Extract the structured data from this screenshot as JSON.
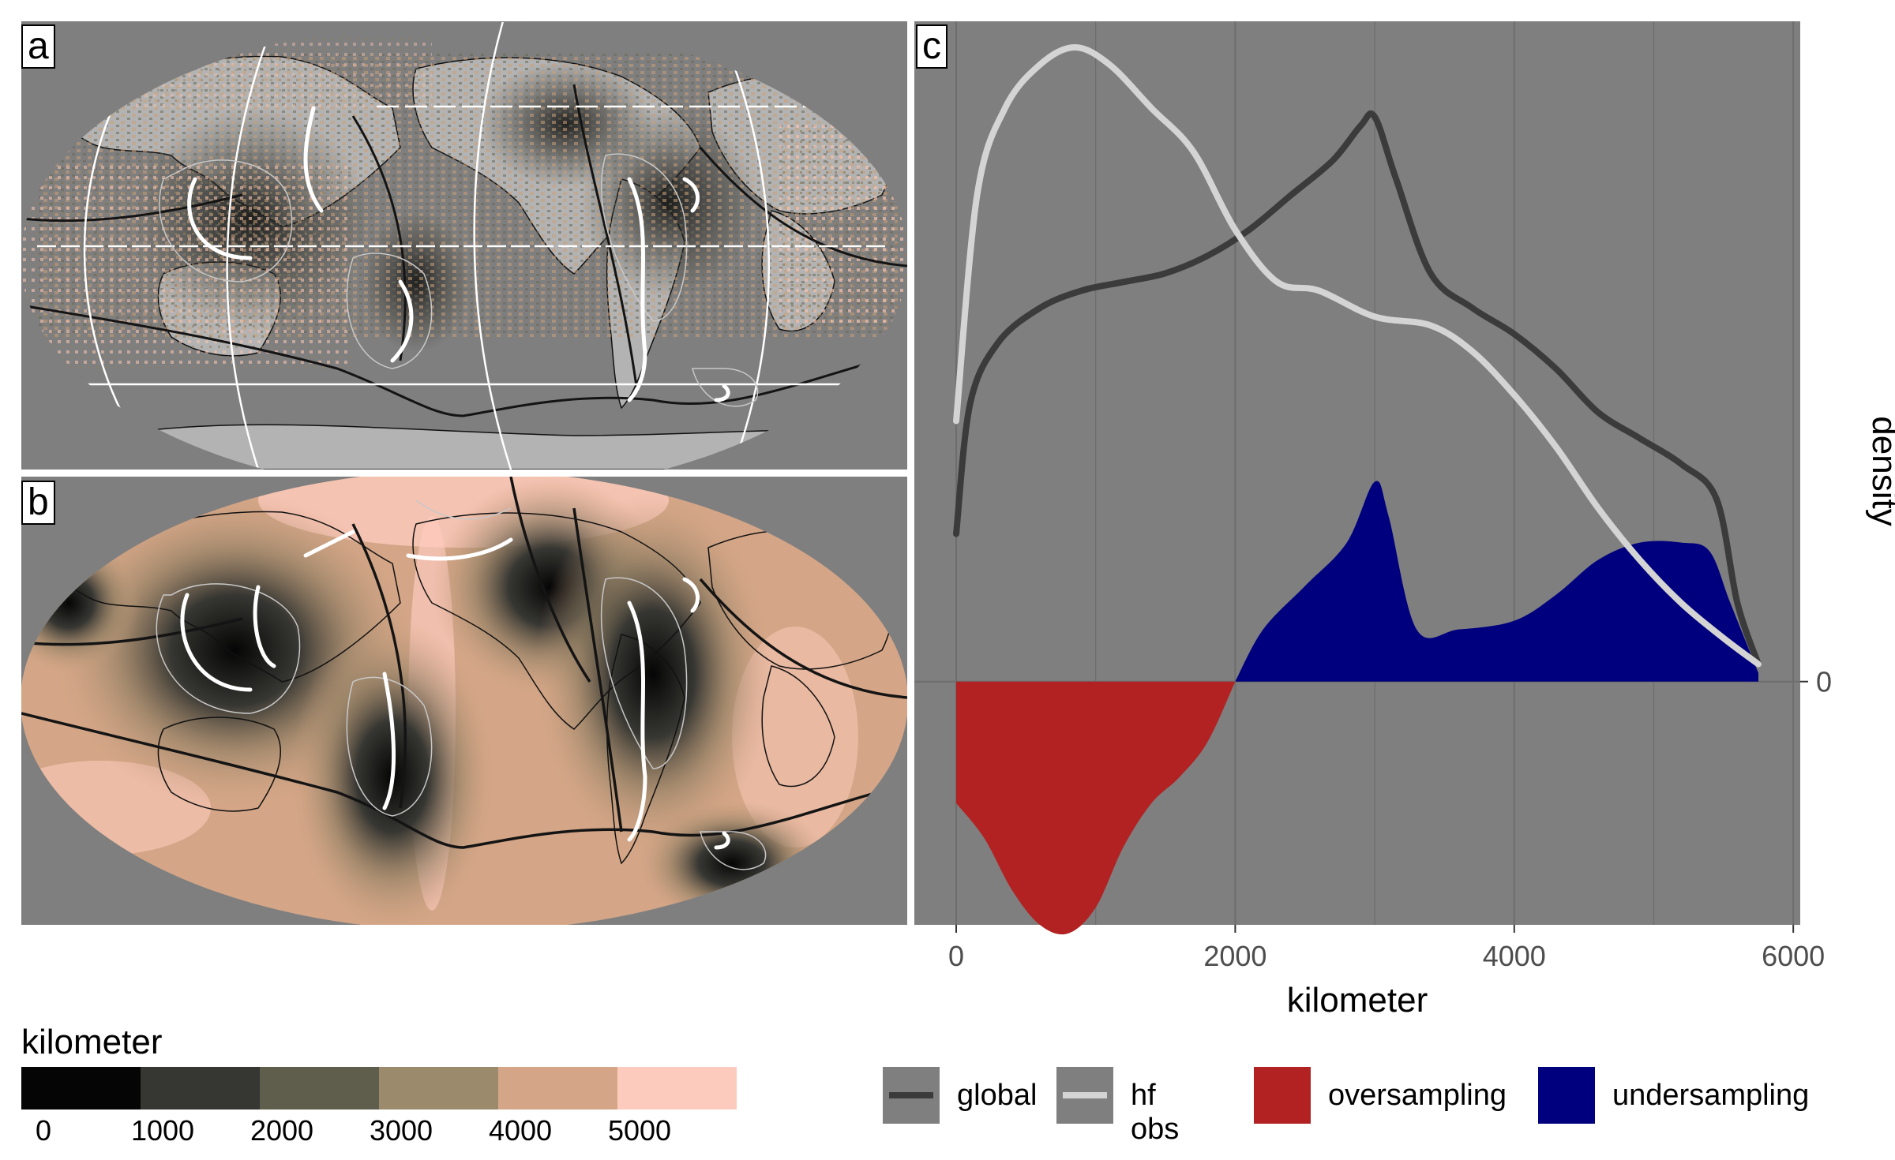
{
  "panels": {
    "a": {
      "tag": "a"
    },
    "b": {
      "tag": "b"
    },
    "c": {
      "tag": "c"
    }
  },
  "colorbar": {
    "title": "kilometer",
    "ticks": [
      "0",
      "1000",
      "2000",
      "3000",
      "4000",
      "5000"
    ],
    "colors": [
      "#050505",
      "#363632",
      "#5f5e4c",
      "#9b8a6c",
      "#d4a687",
      "#fdcbbd"
    ]
  },
  "legend": {
    "items": [
      {
        "label": "global",
        "color": "#3b3b3b",
        "kind": "line"
      },
      {
        "label": "hf obs",
        "color": "#d4d4d4",
        "kind": "line"
      },
      {
        "label": "oversampling",
        "color": "#b22222",
        "kind": "fill"
      },
      {
        "label": "undersampling",
        "color": "#00007f",
        "kind": "fill"
      }
    ]
  },
  "chart_data": {
    "type": "area",
    "xlabel": "kilometer",
    "ylabel": "density",
    "xlim": [
      -300,
      6050
    ],
    "x_ticks": [
      0,
      2000,
      4000,
      6000
    ],
    "x_tick_labels": [
      "0",
      "2000",
      "4000",
      "6000"
    ],
    "y_ticks": [
      0
    ],
    "y_tick_labels": [
      "0"
    ],
    "ylim": [
      -0.00028,
      0.00076
    ],
    "grid": true,
    "background": "#7f7f7f",
    "series": [
      {
        "name": "global",
        "type": "line",
        "color": "#3b3b3b",
        "x": [
          0,
          100,
          300,
          600,
          900,
          1200,
          1500,
          1800,
          2100,
          2400,
          2700,
          2900,
          3000,
          3150,
          3400,
          3700,
          4000,
          4300,
          4600,
          4900,
          5200,
          5450,
          5600,
          5750
        ],
        "y": [
          0.00017,
          0.00032,
          0.00039,
          0.00043,
          0.00045,
          0.00046,
          0.00047,
          0.00049,
          0.00052,
          0.00056,
          0.0006,
          0.00064,
          0.00065,
          0.00058,
          0.00047,
          0.00043,
          0.0004,
          0.00036,
          0.00031,
          0.00028,
          0.00025,
          0.00021,
          9e-05,
          2e-05
        ]
      },
      {
        "name": "hf obs",
        "type": "line",
        "color": "#d4d4d4",
        "x": [
          0,
          150,
          350,
          600,
          850,
          1100,
          1400,
          1700,
          2000,
          2300,
          2600,
          3000,
          3400,
          3700,
          4000,
          4300,
          4600,
          4900,
          5200,
          5500,
          5750
        ],
        "y": [
          0.0003,
          0.00056,
          0.00066,
          0.00071,
          0.00073,
          0.00071,
          0.00066,
          0.00061,
          0.00052,
          0.00046,
          0.00045,
          0.00042,
          0.00041,
          0.00038,
          0.00033,
          0.00027,
          0.0002,
          0.00014,
          9e-05,
          5e-05,
          2e-05
        ]
      },
      {
        "name": "oversampling",
        "type": "area",
        "color": "#b22222",
        "x": [
          0,
          200,
          400,
          600,
          800,
          1000,
          1200,
          1400,
          1600,
          1800,
          2000
        ],
        "y": [
          -0.00014,
          -0.00018,
          -0.00024,
          -0.00028,
          -0.00029,
          -0.00026,
          -0.00019,
          -0.00014,
          -0.00011,
          -7e-05,
          0
        ]
      },
      {
        "name": "undersampling",
        "type": "area",
        "color": "#00007f",
        "x": [
          2000,
          2200,
          2500,
          2800,
          3000,
          3100,
          3300,
          3600,
          4000,
          4300,
          4600,
          4900,
          5200,
          5400,
          5550,
          5750
        ],
        "y": [
          0,
          6e-05,
          0.00011,
          0.00016,
          0.00023,
          0.00019,
          6e-05,
          6e-05,
          7e-05,
          0.0001,
          0.00014,
          0.00016,
          0.00016,
          0.00015,
          9e-05,
          1e-05
        ]
      }
    ]
  }
}
